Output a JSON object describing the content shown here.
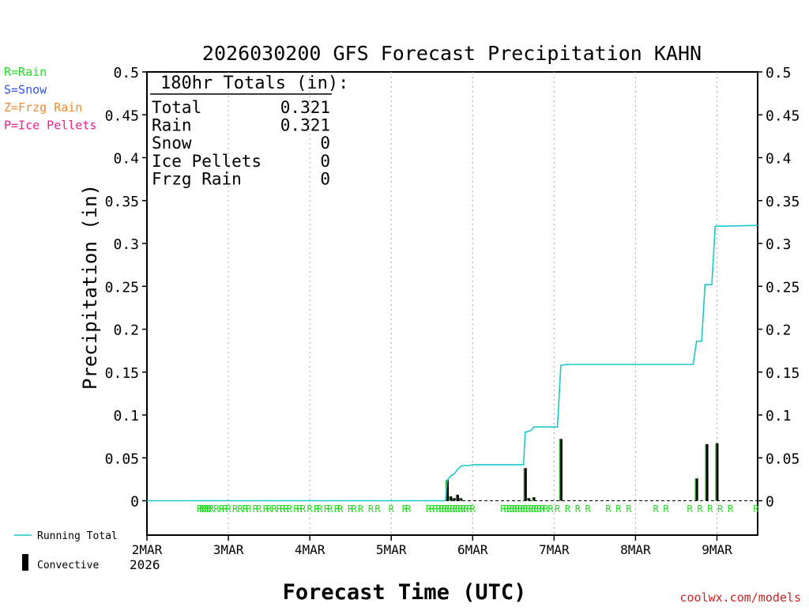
{
  "chart_data": {
    "type": "bar+line",
    "title": "2026030200 GFS Forecast Precipitation KAHN",
    "ylabel": "Precipitation (in)",
    "xlabel": "Forecast Time (UTC)",
    "ylim": [
      -0.04,
      0.5
    ],
    "y_ticks": [
      0,
      0.05,
      0.1,
      0.15,
      0.2,
      0.25,
      0.3,
      0.35,
      0.4,
      0.45,
      0.5
    ],
    "y_tick_labels": [
      "0",
      "0.05",
      "0.1",
      "0.15",
      "0.2",
      "0.25",
      "0.3",
      "0.35",
      "0.4",
      "0.45",
      "0.5"
    ],
    "xlim_hours": [
      0,
      180
    ],
    "x_ticks": [
      {
        "hour": 0,
        "label": "2MAR"
      },
      {
        "hour": 24,
        "label": "3MAR"
      },
      {
        "hour": 48,
        "label": "4MAR"
      },
      {
        "hour": 72,
        "label": "5MAR"
      },
      {
        "hour": 96,
        "label": "6MAR"
      },
      {
        "hour": 120,
        "label": "7MAR"
      },
      {
        "hour": 144,
        "label": "8MAR"
      },
      {
        "hour": 168,
        "label": "9MAR"
      }
    ],
    "year_label": "2026",
    "legend_types": [
      {
        "text": "R=Rain",
        "color": "#22dd22"
      },
      {
        "text": "S=Snow",
        "color": "#3355ee"
      },
      {
        "text": "Z=Frzg Rain",
        "color": "#f08a30"
      },
      {
        "text": "P=Ice Pellets",
        "color": "#e8208c"
      }
    ],
    "legend_series": [
      {
        "text": "Running Total",
        "color": "#18c8cc"
      },
      {
        "text": "Convective",
        "color": "#000000"
      }
    ],
    "totals": {
      "header": "180hr Totals (in):",
      "rows": [
        {
          "label": "Total",
          "value": "0.321"
        },
        {
          "label": "Rain",
          "value": "0.321"
        },
        {
          "label": "Snow",
          "value": "0"
        },
        {
          "label": "Ice Pellets",
          "value": "0"
        },
        {
          "label": "Frzg Rain",
          "value": "0"
        }
      ]
    },
    "precip_bars": [
      {
        "hour": 88.5,
        "value": 0.024
      },
      {
        "hour": 89.5,
        "value": 0.005
      },
      {
        "hour": 90.5,
        "value": 0.003
      },
      {
        "hour": 91.5,
        "value": 0.007
      },
      {
        "hour": 92.5,
        "value": 0.003
      },
      {
        "hour": 111.5,
        "value": 0.038
      },
      {
        "hour": 112.5,
        "value": 0.003
      },
      {
        "hour": 114,
        "value": 0.004
      },
      {
        "hour": 122,
        "value": 0.072
      },
      {
        "hour": 162,
        "value": 0.026
      },
      {
        "hour": 165,
        "value": 0.066
      },
      {
        "hour": 168,
        "value": 0.067
      }
    ],
    "running_total": [
      [
        0,
        0
      ],
      [
        88,
        0
      ],
      [
        88.5,
        0.024
      ],
      [
        89.5,
        0.029
      ],
      [
        90.5,
        0.031
      ],
      [
        91.5,
        0.036
      ],
      [
        92.5,
        0.04
      ],
      [
        93,
        0.041
      ],
      [
        95,
        0.041
      ],
      [
        96,
        0.042
      ],
      [
        111,
        0.042
      ],
      [
        111.5,
        0.08
      ],
      [
        112.5,
        0.081
      ],
      [
        113.5,
        0.083
      ],
      [
        114,
        0.086
      ],
      [
        121,
        0.086
      ],
      [
        122,
        0.158
      ],
      [
        124,
        0.159
      ],
      [
        161,
        0.159
      ],
      [
        162,
        0.186
      ],
      [
        163.5,
        0.186
      ],
      [
        164.5,
        0.252
      ],
      [
        166.5,
        0.252
      ],
      [
        167.5,
        0.32
      ],
      [
        180,
        0.321
      ]
    ],
    "ptype_marks": {
      "label": "R",
      "hours": [
        15.5,
        16.2,
        16.9,
        17.6,
        18.3,
        19.0,
        20.5,
        22,
        23,
        24,
        26,
        27.5,
        29,
        30,
        32,
        33,
        35,
        36,
        37.5,
        39,
        40,
        41,
        42,
        44,
        45,
        46,
        48,
        50,
        51,
        53,
        54,
        56,
        57,
        60,
        61,
        63,
        66,
        68,
        72,
        76,
        77,
        83,
        84,
        85,
        86,
        86.8,
        87.6,
        88.4,
        89.2,
        90,
        90.8,
        91.6,
        92.4,
        93.2,
        94,
        95,
        96,
        105,
        106,
        106.8,
        107.6,
        108.4,
        109.2,
        110,
        110.8,
        111.6,
        112.4,
        113.2,
        114,
        114.8,
        115.6,
        116.4,
        117.5,
        119,
        121,
        124,
        127,
        130,
        136,
        139,
        142,
        150,
        153,
        160,
        163,
        166,
        169,
        172,
        180
      ]
    }
  },
  "credit": "coolwx.com/models"
}
